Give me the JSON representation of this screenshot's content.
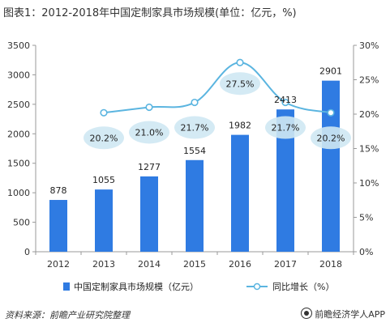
{
  "title": "图表1：2012-2018年中国定制家具市场规模(单位：亿元，%)",
  "footer": {
    "source": "资料来源：前瞻产业研究院整理",
    "brand": "前瞻经济学人APP"
  },
  "colors": {
    "bar": "#2f7be2",
    "line": "#5bb5e0",
    "bubble": "#cfe8f3",
    "axis": "#999999",
    "grid": "#eeeeee"
  },
  "chart_data": {
    "type": "bar",
    "categories": [
      "2012",
      "2013",
      "2014",
      "2015",
      "2016",
      "2017",
      "2018"
    ],
    "series": [
      {
        "name": "中国定制家具市场规模（亿元）",
        "type": "bar",
        "axis": "left",
        "values": [
          878,
          1055,
          1277,
          1554,
          1982,
          2413,
          2901
        ],
        "labels": [
          "878",
          "1055",
          "1277",
          "1554",
          "1982",
          "2413",
          "2901"
        ]
      },
      {
        "name": "同比增长（%）",
        "type": "line",
        "axis": "right",
        "values": [
          null,
          20.2,
          21.0,
          21.7,
          27.5,
          21.7,
          20.2
        ],
        "labels": [
          "",
          "20.2%",
          "21.0%",
          "21.7%",
          "27.5%",
          "21.7%",
          "20.2%"
        ]
      }
    ],
    "y_left": {
      "min": 0,
      "max": 3500,
      "ticks": [
        "0",
        "500",
        "1000",
        "1500",
        "2000",
        "2500",
        "3000",
        "3500"
      ]
    },
    "y_right": {
      "min": 0,
      "max": 30,
      "ticks": [
        "0%",
        "5%",
        "10%",
        "15%",
        "20%",
        "25%",
        "30%"
      ]
    },
    "grid": false,
    "legend": "bottom"
  }
}
